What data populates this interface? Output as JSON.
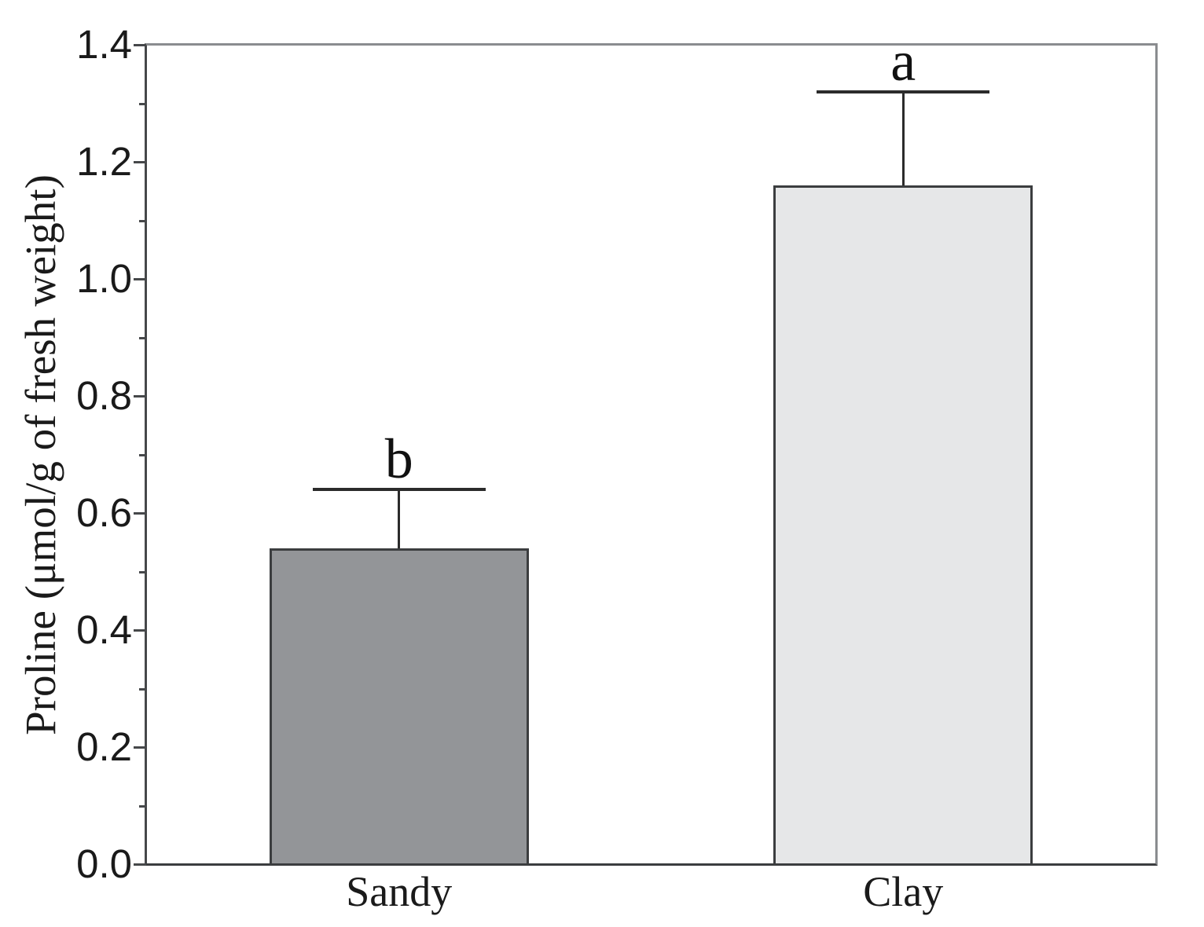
{
  "chart_data": {
    "type": "bar",
    "title": "",
    "xlabel": "",
    "ylabel": "Proline (μmol/g of fresh weight)",
    "categories": [
      "Sandy",
      "Clay"
    ],
    "values": [
      0.54,
      1.16
    ],
    "errors_plus": [
      0.1,
      0.16
    ],
    "bar_letters": [
      "b",
      "a"
    ],
    "bar_colors": [
      "#939598",
      "#e6e7e8"
    ],
    "bar_border_color": "#3b3d3f",
    "error_bar_color": "#2b2b2b",
    "axis_color": "#46484a",
    "frame_color": "#8a8c8f",
    "text_color": "#1a1a1a",
    "ylim": [
      0.0,
      1.4
    ],
    "y_major_step": 0.2,
    "y_minor_step": 0.1,
    "y_tick_decimals": 1,
    "grid": false,
    "legend_position": "none"
  }
}
